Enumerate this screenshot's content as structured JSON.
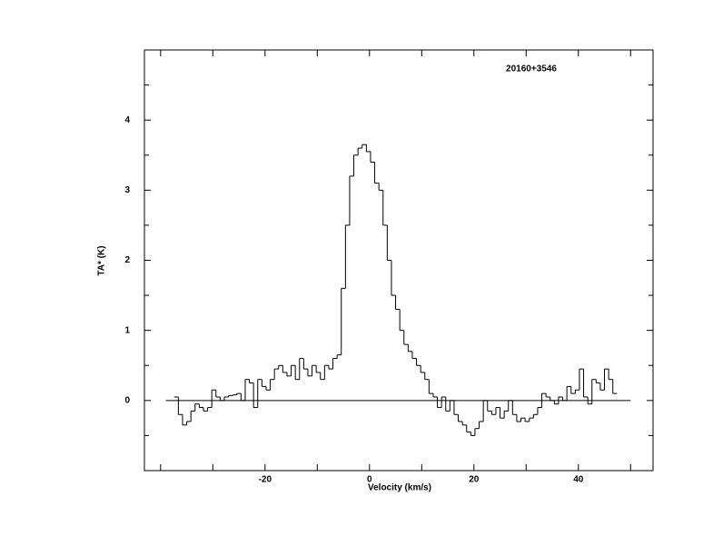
{
  "chart_data": {
    "type": "step",
    "title": "20160+3546",
    "xlabel": "Velocity (km/s)",
    "ylabel": "TA* (K)",
    "xlim": [
      -43.1,
      54.3
    ],
    "ylim": [
      -1,
      5
    ],
    "xticks": [
      -20,
      0,
      20,
      40
    ],
    "yticks": [
      0,
      1,
      2,
      3,
      4
    ],
    "xminor": [
      -40,
      -30,
      -20,
      -10,
      0,
      10,
      20,
      30,
      40,
      50
    ],
    "yminor": [
      -0.5,
      0.5,
      1.5,
      2.5,
      3.5,
      4.5
    ],
    "hline": {
      "y": 0,
      "x": [
        -39,
        50
      ]
    },
    "color": "#000000",
    "x": [
      -37,
      -36.2,
      -35.4,
      -34.6,
      -33.8,
      -33,
      -32.2,
      -31.4,
      -30.6,
      -29.8,
      -29,
      -28.2,
      -27.4,
      -26.6,
      -25.8,
      -25,
      -24.2,
      -23.4,
      -22.6,
      -21.8,
      -21,
      -20.2,
      -19.4,
      -18.6,
      -17.8,
      -17,
      -16.2,
      -15.4,
      -14.6,
      -13.8,
      -13,
      -12.2,
      -11.4,
      -10.6,
      -9.8,
      -9,
      -8.2,
      -7.4,
      -6.6,
      -5.8,
      -5,
      -4.2,
      -3.4,
      -2.6,
      -1.8,
      -1,
      -0.2,
      0.6,
      1.4,
      2.2,
      3,
      3.8,
      4.6,
      5.4,
      6.2,
      7,
      7.8,
      8.6,
      9.4,
      10.2,
      11,
      11.8,
      12.6,
      13.4,
      14.2,
      15,
      15.8,
      16.6,
      17.4,
      18.2,
      19,
      19.8,
      20.6,
      21.4,
      22.2,
      23,
      23.8,
      24.6,
      25.4,
      26.2,
      27,
      27.8,
      28.6,
      29.4,
      30.2,
      31,
      31.8,
      32.6,
      33.4,
      34.2,
      35,
      35.8,
      36.6,
      37.4,
      38.2,
      39,
      39.8,
      40.6,
      41.4,
      42.2,
      43,
      43.8,
      44.6,
      45.4,
      46.2,
      47
    ],
    "values": [
      0.05,
      -0.2,
      -0.35,
      -0.3,
      -0.15,
      -0.05,
      -0.1,
      -0.15,
      -0.1,
      0.15,
      0.05,
      0.0,
      0.05,
      0.07,
      0.08,
      0.1,
      0.0,
      0.3,
      0.25,
      -0.1,
      0.3,
      0.2,
      0.15,
      0.3,
      0.45,
      0.5,
      0.4,
      0.35,
      0.5,
      0.3,
      0.6,
      0.45,
      0.35,
      0.5,
      0.4,
      0.3,
      0.5,
      0.45,
      0.6,
      0.65,
      1.6,
      2.5,
      3.2,
      3.5,
      3.6,
      3.65,
      3.55,
      3.4,
      3.1,
      3.0,
      2.5,
      2.0,
      1.5,
      1.3,
      1.0,
      0.8,
      0.7,
      0.6,
      0.5,
      0.4,
      0.3,
      0.1,
      0.05,
      -0.1,
      0.05,
      -0.15,
      0.0,
      -0.2,
      -0.3,
      -0.35,
      -0.45,
      -0.5,
      -0.4,
      -0.3,
      0.0,
      -0.15,
      -0.2,
      -0.1,
      -0.25,
      -0.15,
      0.0,
      -0.2,
      -0.3,
      -0.25,
      -0.3,
      -0.25,
      -0.2,
      -0.1,
      0.1,
      0.05,
      0.0,
      -0.05,
      0.05,
      0.0,
      0.2,
      0.1,
      0.15,
      0.45,
      0.05,
      -0.05,
      0.3,
      0.25,
      0.15,
      0.45,
      0.3,
      0.1
    ]
  }
}
